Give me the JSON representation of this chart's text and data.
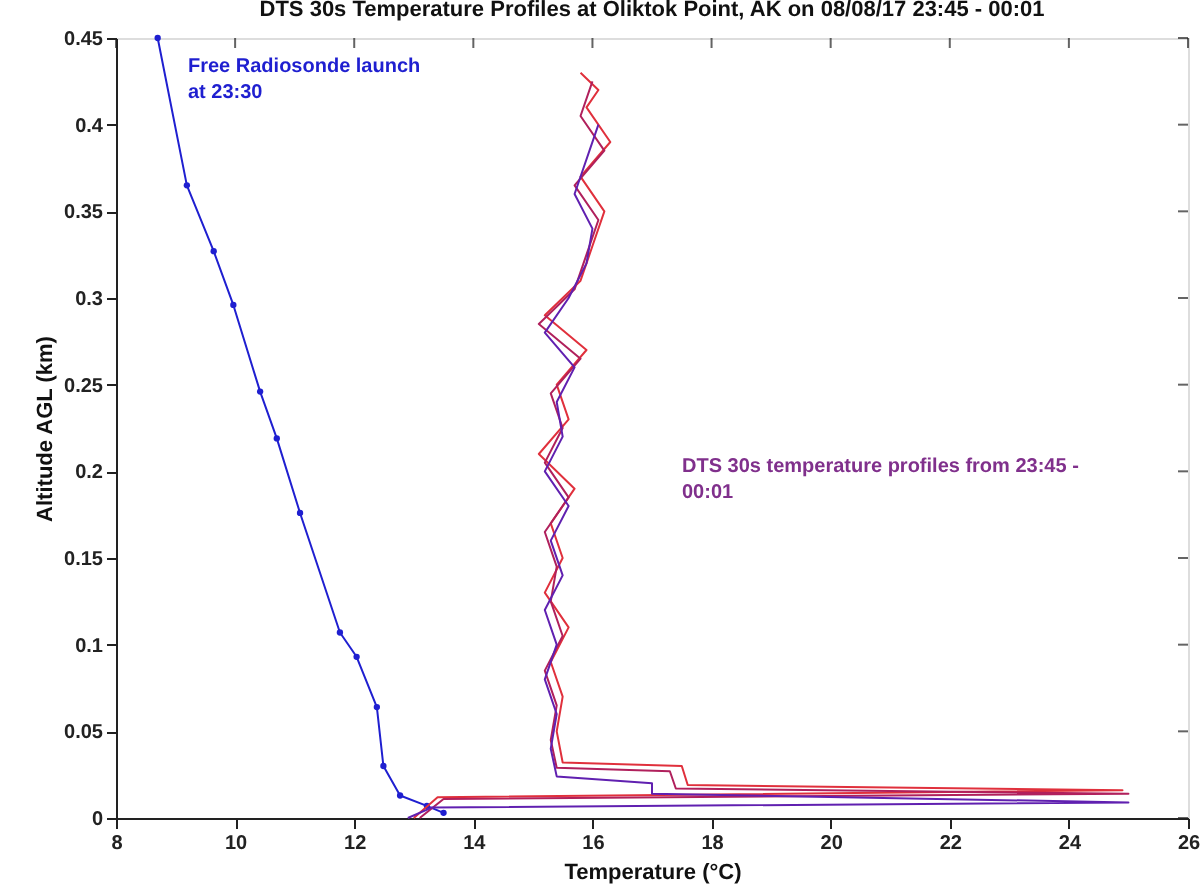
{
  "chart_data": {
    "type": "line",
    "title": "DTS 30s Temperature Profiles at Oliktok Point, AK on 08/08/17 23:45 - 00:01",
    "xlabel": "Temperature (°C)",
    "ylabel": "Altitude AGL (km)",
    "xlim": [
      8,
      26
    ],
    "xticks": [
      8,
      10,
      12,
      14,
      16,
      18,
      20,
      22,
      24,
      26
    ],
    "ylim": [
      0,
      0.45
    ],
    "yticks": [
      0,
      0.05,
      0.1,
      0.15,
      0.2,
      0.25,
      0.3,
      0.35,
      0.4,
      0.45
    ],
    "grid": false,
    "series": [
      {
        "color": "#1f1fd0",
        "marker": "circle",
        "x": [
          8.7,
          9.19,
          9.64,
          9.97,
          10.42,
          10.7,
          11.09,
          11.76,
          12.04,
          12.38,
          12.49,
          12.77,
          13.22,
          13.5
        ],
        "values": [
          0.45,
          0.365,
          0.327,
          0.296,
          0.246,
          0.219,
          0.176,
          0.107,
          0.093,
          0.064,
          0.03,
          0.013,
          0.007,
          0.003
        ]
      },
      {
        "color": "#e0303c",
        "marker": "none",
        "x": [
          13.0,
          13.4,
          24.9,
          17.6,
          17.5,
          15.5,
          15.4,
          15.5,
          15.3,
          15.6,
          15.2,
          15.5,
          15.3,
          15.7,
          15.1,
          15.6,
          15.4,
          15.9,
          15.2,
          15.8,
          16.0,
          16.2,
          15.8,
          16.3,
          15.9,
          16.1,
          15.8
        ],
        "values": [
          0.0,
          0.012,
          0.016,
          0.019,
          0.03,
          0.032,
          0.05,
          0.07,
          0.09,
          0.11,
          0.13,
          0.15,
          0.17,
          0.19,
          0.21,
          0.23,
          0.25,
          0.27,
          0.29,
          0.31,
          0.33,
          0.35,
          0.37,
          0.39,
          0.41,
          0.42,
          0.43
        ]
      },
      {
        "color": "#b0205c",
        "marker": "none",
        "x": [
          13.1,
          13.5,
          25.0,
          17.4,
          17.3,
          15.4,
          15.3,
          15.4,
          15.2,
          15.5,
          15.3,
          15.4,
          15.2,
          15.6,
          15.2,
          15.5,
          15.3,
          15.8,
          15.1,
          15.7,
          15.9,
          16.1,
          15.7,
          16.2,
          15.8,
          16.0
        ],
        "values": [
          0.0,
          0.011,
          0.014,
          0.017,
          0.027,
          0.029,
          0.045,
          0.065,
          0.085,
          0.105,
          0.125,
          0.145,
          0.165,
          0.185,
          0.205,
          0.225,
          0.245,
          0.265,
          0.285,
          0.305,
          0.325,
          0.345,
          0.365,
          0.385,
          0.405,
          0.425
        ]
      },
      {
        "color": "#6020b0",
        "marker": "none",
        "x": [
          12.9,
          13.3,
          25.0,
          17.0,
          17.0,
          15.4,
          15.3,
          15.4,
          15.2,
          15.4,
          15.2,
          15.5,
          15.3,
          15.6,
          15.2,
          15.5,
          15.4,
          15.7,
          15.2,
          15.6,
          15.9,
          16.0,
          15.7,
          16.1
        ],
        "values": [
          0.0,
          0.006,
          0.009,
          0.014,
          0.02,
          0.024,
          0.04,
          0.06,
          0.08,
          0.1,
          0.12,
          0.14,
          0.16,
          0.18,
          0.2,
          0.22,
          0.24,
          0.26,
          0.28,
          0.3,
          0.32,
          0.34,
          0.36,
          0.4
        ]
      }
    ],
    "annotations": [
      "Free Radiosonde launch\nat 23:30",
      "DTS 30s temperature profiles from 23:45 -\n00:01"
    ]
  }
}
